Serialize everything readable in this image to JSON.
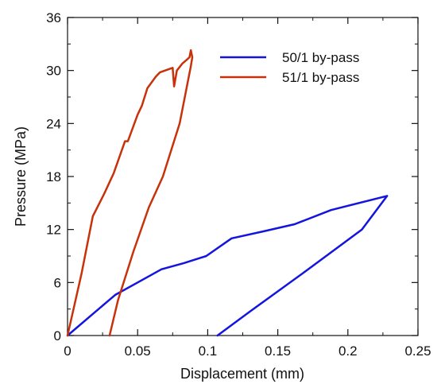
{
  "chart_data": {
    "type": "line",
    "title": "",
    "xlabel": "Displacement (mm)",
    "ylabel": "Pressure (MPa)",
    "xlim": [
      0,
      0.25
    ],
    "ylim": [
      0,
      36
    ],
    "xticks": [
      "0",
      "0.05",
      "0.1",
      "0.15",
      "0.2",
      "0.25"
    ],
    "yticks": [
      "0",
      "6",
      "12",
      "18",
      "24",
      "30",
      "36"
    ],
    "grid": false,
    "legend_position": "top-right",
    "series": [
      {
        "name": "50/1 by-pass",
        "color": "#1414e0",
        "points": [
          [
            0,
            0
          ],
          [
            0.017,
            2.3
          ],
          [
            0.034,
            4.6
          ],
          [
            0.05,
            6.0
          ],
          [
            0.067,
            7.5
          ],
          [
            0.083,
            8.2
          ],
          [
            0.099,
            9.0
          ],
          [
            0.117,
            11.0
          ],
          [
            0.14,
            11.8
          ],
          [
            0.162,
            12.6
          ],
          [
            0.188,
            14.2
          ],
          [
            0.228,
            15.8
          ],
          [
            0.21,
            12.0
          ],
          [
            0.17,
            7.3
          ],
          [
            0.13,
            2.7
          ],
          [
            0.107,
            0
          ]
        ]
      },
      {
        "name": "51/1 by-pass",
        "color": "#c8320a",
        "points": [
          [
            0,
            0
          ],
          [
            0.01,
            7.0
          ],
          [
            0.018,
            13.5
          ],
          [
            0.026,
            16.0
          ],
          [
            0.033,
            18.4
          ],
          [
            0.041,
            22.0
          ],
          [
            0.043,
            22.0
          ],
          [
            0.044,
            22.4
          ],
          [
            0.05,
            25.0
          ],
          [
            0.053,
            26.0
          ],
          [
            0.057,
            28.0
          ],
          [
            0.063,
            29.3
          ],
          [
            0.066,
            29.8
          ],
          [
            0.075,
            30.3
          ],
          [
            0.076,
            28.2
          ],
          [
            0.078,
            30.0
          ],
          [
            0.082,
            30.8
          ],
          [
            0.085,
            31.2
          ],
          [
            0.087,
            31.5
          ],
          [
            0.088,
            32.3
          ],
          [
            0.089,
            31.5
          ],
          [
            0.088,
            30.5
          ],
          [
            0.08,
            24.0
          ],
          [
            0.068,
            18.0
          ],
          [
            0.058,
            14.5
          ],
          [
            0.047,
            9.5
          ],
          [
            0.036,
            4.0
          ],
          [
            0.03,
            0
          ]
        ]
      }
    ]
  }
}
